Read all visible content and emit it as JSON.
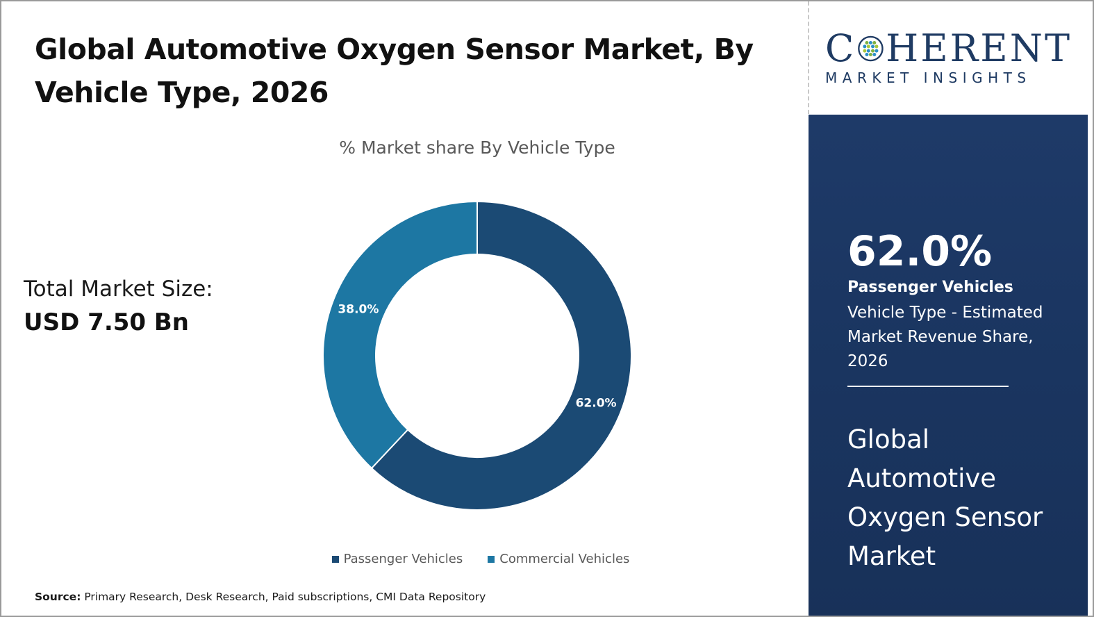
{
  "title": "Global Automotive Oxygen Sensor Market, By Vehicle Type, 2026",
  "total_market": {
    "label": "Total Market Size:",
    "value": "USD 7.50 Bn"
  },
  "source": {
    "label": "Source:",
    "text": "Primary Research, Desk Research, Paid subscriptions, CMI Data Repository"
  },
  "logo": {
    "top": "COHERENT",
    "top_before": "C",
    "top_after": "HERENT",
    "bottom": "MARKET INSIGHTS"
  },
  "side_panel": {
    "highlight_value": "62.0%",
    "segment": "Passenger Vehicles",
    "description": "Vehicle Type - Estimated Market Revenue Share, 2026",
    "market_name": "Global Automotive Oxygen Sensor Market"
  },
  "colors": {
    "passenger": "#1b4a74",
    "commercial": "#1d77a3",
    "panel": "#1e3a68"
  },
  "chart_data": {
    "type": "pie",
    "variant": "donut",
    "title": "% Market share By Vehicle Type",
    "slices": [
      {
        "name": "Passenger Vehicles",
        "value": 62.0,
        "label": "62.0%",
        "color": "#1b4a74"
      },
      {
        "name": "Commercial Vehicles",
        "value": 38.0,
        "label": "38.0%",
        "color": "#1d77a3"
      }
    ],
    "legend_position": "bottom"
  }
}
